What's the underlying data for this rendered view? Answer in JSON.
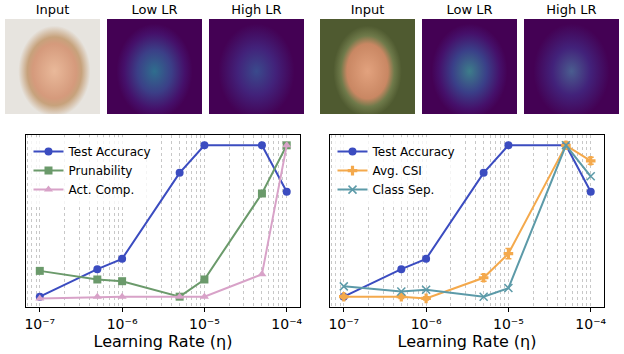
{
  "image_panels": {
    "titles": [
      "Input",
      "Low LR",
      "High LR",
      "Input",
      "Low LR",
      "High LR"
    ]
  },
  "chart_data": [
    {
      "type": "line",
      "x_label": "Learning Rate (η)",
      "x": [
        1e-07,
        5e-07,
        1e-06,
        5e-06,
        1e-05,
        5e-05,
        0.0001
      ],
      "series": [
        {
          "name": "Test Accuracy",
          "color": "#3b4cc0",
          "marker": "circle",
          "values": [
            0.06,
            0.22,
            0.28,
            0.78,
            0.94,
            0.94,
            0.67
          ]
        },
        {
          "name": "Prunability",
          "color": "#6b9a6b",
          "marker": "square",
          "values": [
            0.21,
            0.16,
            0.15,
            0.06,
            0.16,
            0.66,
            0.94
          ]
        },
        {
          "name": "Act. Comp.",
          "color": "#d8a2c8",
          "marker": "triangle",
          "values": [
            0.05,
            0.06,
            0.06,
            0.06,
            0.06,
            0.19,
            0.94
          ]
        }
      ],
      "xlim": [
        6.8e-08,
        0.000145
      ],
      "xticks": [
        {
          "value": 1e-07,
          "label": "10⁻⁷"
        },
        {
          "value": 1e-06,
          "label": "10⁻⁶"
        },
        {
          "value": 1e-05,
          "label": "10⁻⁵"
        },
        {
          "value": 0.0001,
          "label": "10⁻⁴"
        }
      ],
      "ylim": [
        0,
        1
      ],
      "yticks": [],
      "log": "x",
      "grid": true,
      "legend": "upper left",
      "tick_labels": "x"
    },
    {
      "type": "line",
      "x_label": "Learning Rate (η)",
      "x": [
        1e-07,
        5e-07,
        1e-06,
        5e-06,
        1e-05,
        5e-05,
        0.0001
      ],
      "series": [
        {
          "name": "Test Accuracy",
          "color": "#3b4cc0",
          "marker": "circle",
          "values": [
            0.06,
            0.22,
            0.28,
            0.78,
            0.94,
            0.94,
            0.67
          ]
        },
        {
          "name": "Avg. CSI",
          "color": "#f4a94c",
          "marker": "plus",
          "values": [
            0.06,
            0.06,
            0.05,
            0.17,
            0.31,
            0.94,
            0.85
          ],
          "errors": [
            0.01,
            0.01,
            0.01,
            0.02,
            0.03,
            0.02,
            0.02
          ]
        },
        {
          "name": "Class Sep.",
          "color": "#5c9aa8",
          "marker": "x",
          "values": [
            0.12,
            0.09,
            0.1,
            0.06,
            0.11,
            0.94,
            0.76
          ]
        }
      ],
      "xlim": [
        6.8e-08,
        0.000145
      ],
      "xticks": [
        {
          "value": 1e-07,
          "label": "10⁻⁷"
        },
        {
          "value": 1e-06,
          "label": "10⁻⁶"
        },
        {
          "value": 1e-05,
          "label": "10⁻⁵"
        },
        {
          "value": 0.0001,
          "label": "10⁻⁴"
        }
      ],
      "ylim": [
        0,
        1
      ],
      "yticks": [],
      "log": "x",
      "grid": true,
      "legend": "upper left",
      "tick_labels": "x"
    }
  ]
}
